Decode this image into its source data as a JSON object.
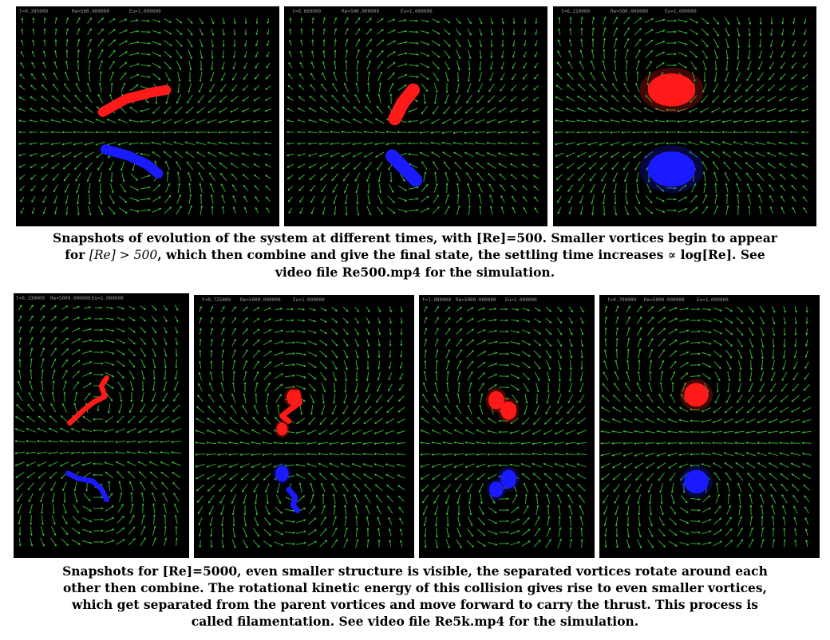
{
  "colors": {
    "positive_vortex": "#ff1a1a",
    "negative_vortex": "#1a1aff",
    "flow_field": "#3cc83c",
    "background": "#000000"
  },
  "row1": {
    "panels": [
      {
        "t": "t=0.395000",
        "re": "Re=500.000000",
        "eu": "Eu=1.000000"
      },
      {
        "t": "t=0.660000",
        "re": "Re=500.000000",
        "eu": "Eu=1.000000"
      },
      {
        "t": "t=6.210000",
        "re": "Re=500.000000",
        "eu": "Eu=1.000000"
      }
    ],
    "caption": {
      "line1": "Snapshots of evolution of the system at different times, with [Re]=500. Smaller vortices begin to appear",
      "line2_pre": "for ",
      "line2_math": "[Re] > 500",
      "line2_post": ", which then combine and give the final state, the settling time increases ∝ log[Re]. See",
      "line3": "video file Re500.mp4 for the simulation."
    }
  },
  "row2": {
    "panels": [
      {
        "t": "t=0.330000",
        "re": "Re=5000.000000",
        "eu": "Eu=1.000000"
      },
      {
        "t": "t=0.725000",
        "re": "Re=5000.000000",
        "eu": "Eu=1.000000"
      },
      {
        "t": "t=1.080000",
        "re": "Re=5000.000000",
        "eu": "Eu=1.000000"
      },
      {
        "t": "t=4.700000",
        "re": "Re=5000.000000",
        "eu": "Eu=1.000000"
      }
    ],
    "caption": {
      "line1": "Snapshots for [Re]=5000, even smaller structure is visible, the separated vortices rotate around each",
      "line2": "other then combine. The rotational kinetic energy of this collision gives rise to even smaller vortices,",
      "line3": "which get separated from the parent vortices and move forward to carry the thrust. This process is",
      "line4": "called filamentation. See video file Re5k.mp4 for the simulation."
    }
  }
}
